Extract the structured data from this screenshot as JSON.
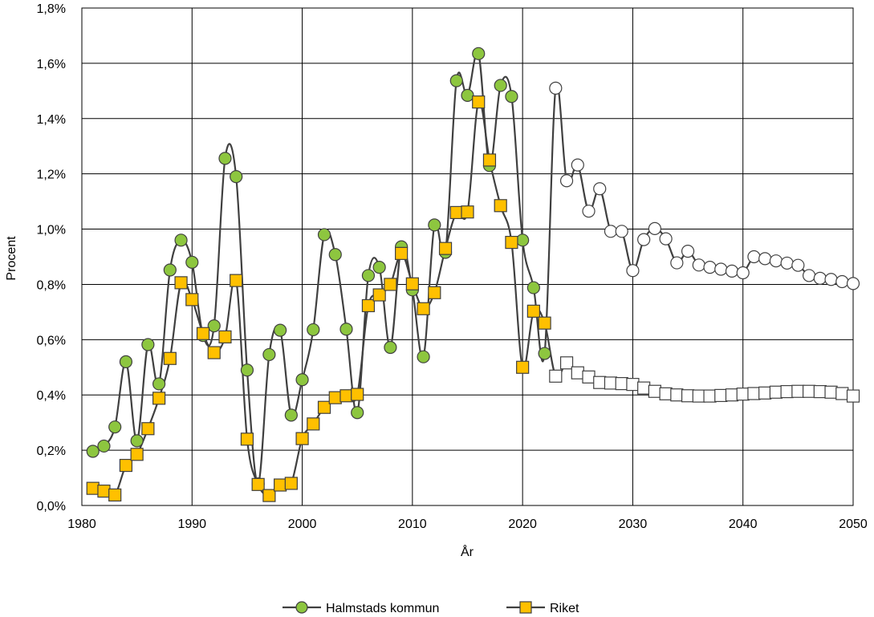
{
  "chart_data": {
    "type": "line",
    "title": "",
    "xlabel": "År",
    "ylabel": "Procent",
    "xlim": [
      1980,
      2050
    ],
    "ylim": [
      0,
      1.8
    ],
    "x_ticks": [
      "1980",
      "1990",
      "2000",
      "2010",
      "2020",
      "2030",
      "2040",
      "2050"
    ],
    "y_ticks": [
      "0,0%",
      "0,2%",
      "0,4%",
      "0,6%",
      "0,8%",
      "1,0%",
      "1,2%",
      "1,4%",
      "1,6%",
      "1,8%"
    ],
    "grid": true,
    "legend_position": "bottom",
    "series": [
      {
        "name": "Halmstads kommun",
        "marker": "circle",
        "color": "#8DC63F",
        "forecast_color": "#FFFFFF",
        "line_color": "#404040",
        "x": [
          1981,
          1982,
          1983,
          1984,
          1985,
          1986,
          1987,
          1988,
          1989,
          1990,
          1991,
          1992,
          1993,
          1994,
          1995,
          1996,
          1997,
          1998,
          1999,
          2000,
          2001,
          2002,
          2003,
          2004,
          2005,
          2006,
          2007,
          2008,
          2009,
          2010,
          2011,
          2012,
          2013,
          2014,
          2015,
          2016,
          2017,
          2018,
          2019,
          2020,
          2021,
          2022,
          2023,
          2024,
          2025,
          2026,
          2027,
          2028,
          2029,
          2030,
          2031,
          2032,
          2033,
          2034,
          2035,
          2036,
          2037,
          2038,
          2039,
          2040,
          2041,
          2042,
          2043,
          2044,
          2045,
          2046,
          2047,
          2048,
          2049,
          2050
        ],
        "y": [
          0.196,
          0.215,
          0.284,
          0.52,
          0.234,
          0.582,
          0.44,
          0.852,
          0.96,
          0.88,
          0.615,
          0.65,
          1.256,
          1.19,
          0.49,
          0.078,
          0.546,
          0.634,
          0.327,
          0.455,
          0.636,
          0.98,
          0.908,
          0.638,
          0.336,
          0.832,
          0.862,
          0.572,
          0.936,
          0.78,
          0.538,
          1.015,
          0.916,
          1.537,
          1.484,
          1.635,
          1.23,
          1.52,
          1.48,
          0.96,
          0.788,
          0.55,
          1.51,
          1.175,
          1.232,
          1.065,
          1.146,
          0.992,
          0.992,
          0.85,
          0.962,
          1.002,
          0.965,
          0.878,
          0.92,
          0.87,
          0.862,
          0.855,
          0.848,
          0.842,
          0.9,
          0.893,
          0.885,
          0.877,
          0.869,
          0.832,
          0.822,
          0.818,
          0.81,
          0.803
        ],
        "forecast_from": 2023
      },
      {
        "name": "Riket",
        "marker": "square",
        "color": "#FFC000",
        "forecast_color": "#FFFFFF",
        "line_color": "#404040",
        "x": [
          1981,
          1982,
          1983,
          1984,
          1985,
          1986,
          1987,
          1988,
          1989,
          1990,
          1991,
          1992,
          1993,
          1994,
          1995,
          1996,
          1997,
          1998,
          1999,
          2000,
          2001,
          2002,
          2003,
          2004,
          2005,
          2006,
          2007,
          2008,
          2009,
          2010,
          2011,
          2012,
          2013,
          2014,
          2015,
          2016,
          2017,
          2018,
          2019,
          2020,
          2021,
          2022,
          2023,
          2024,
          2025,
          2026,
          2027,
          2028,
          2029,
          2030,
          2031,
          2032,
          2033,
          2034,
          2035,
          2036,
          2037,
          2038,
          2039,
          2040,
          2041,
          2042,
          2043,
          2044,
          2045,
          2046,
          2047,
          2048,
          2049,
          2050
        ],
        "y": [
          0.062,
          0.052,
          0.038,
          0.145,
          0.185,
          0.278,
          0.388,
          0.532,
          0.806,
          0.745,
          0.622,
          0.553,
          0.61,
          0.814,
          0.24,
          0.076,
          0.036,
          0.074,
          0.08,
          0.242,
          0.295,
          0.355,
          0.39,
          0.397,
          0.402,
          0.723,
          0.762,
          0.8,
          0.912,
          0.802,
          0.712,
          0.77,
          0.93,
          1.06,
          1.062,
          1.46,
          1.25,
          1.085,
          0.952,
          0.5,
          0.703,
          0.66,
          0.468,
          0.516,
          0.48,
          0.465,
          0.445,
          0.443,
          0.441,
          0.438,
          0.425,
          0.413,
          0.404,
          0.4,
          0.397,
          0.396,
          0.396,
          0.398,
          0.4,
          0.403,
          0.405,
          0.407,
          0.41,
          0.412,
          0.413,
          0.413,
          0.412,
          0.41,
          0.405,
          0.396
        ],
        "forecast_from": 2023
      }
    ]
  }
}
